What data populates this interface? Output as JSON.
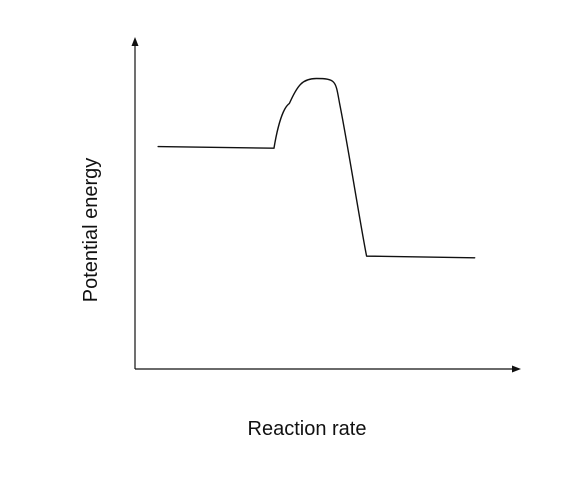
{
  "chart_data": {
    "type": "line",
    "title": "",
    "xlabel": "Reaction rate",
    "ylabel": "Potential energy",
    "grid": false,
    "legend": "none",
    "ticks": "none",
    "series": [
      {
        "name": "",
        "shape": "energy-profile",
        "points": [
          {
            "x": 0.06,
            "y": 0.67
          },
          {
            "x": 0.36,
            "y": 0.665
          },
          {
            "x": 0.4,
            "y": 0.8
          },
          {
            "x": 0.47,
            "y": 0.875
          },
          {
            "x": 0.53,
            "y": 0.8
          },
          {
            "x": 0.6,
            "y": 0.34
          },
          {
            "x": 0.88,
            "y": 0.335
          }
        ]
      }
    ],
    "xlim": [
      0,
      1
    ],
    "ylim": [
      0,
      1
    ],
    "colors": {
      "line": "#111111",
      "axis": "#111111",
      "background": "#ffffff"
    }
  }
}
